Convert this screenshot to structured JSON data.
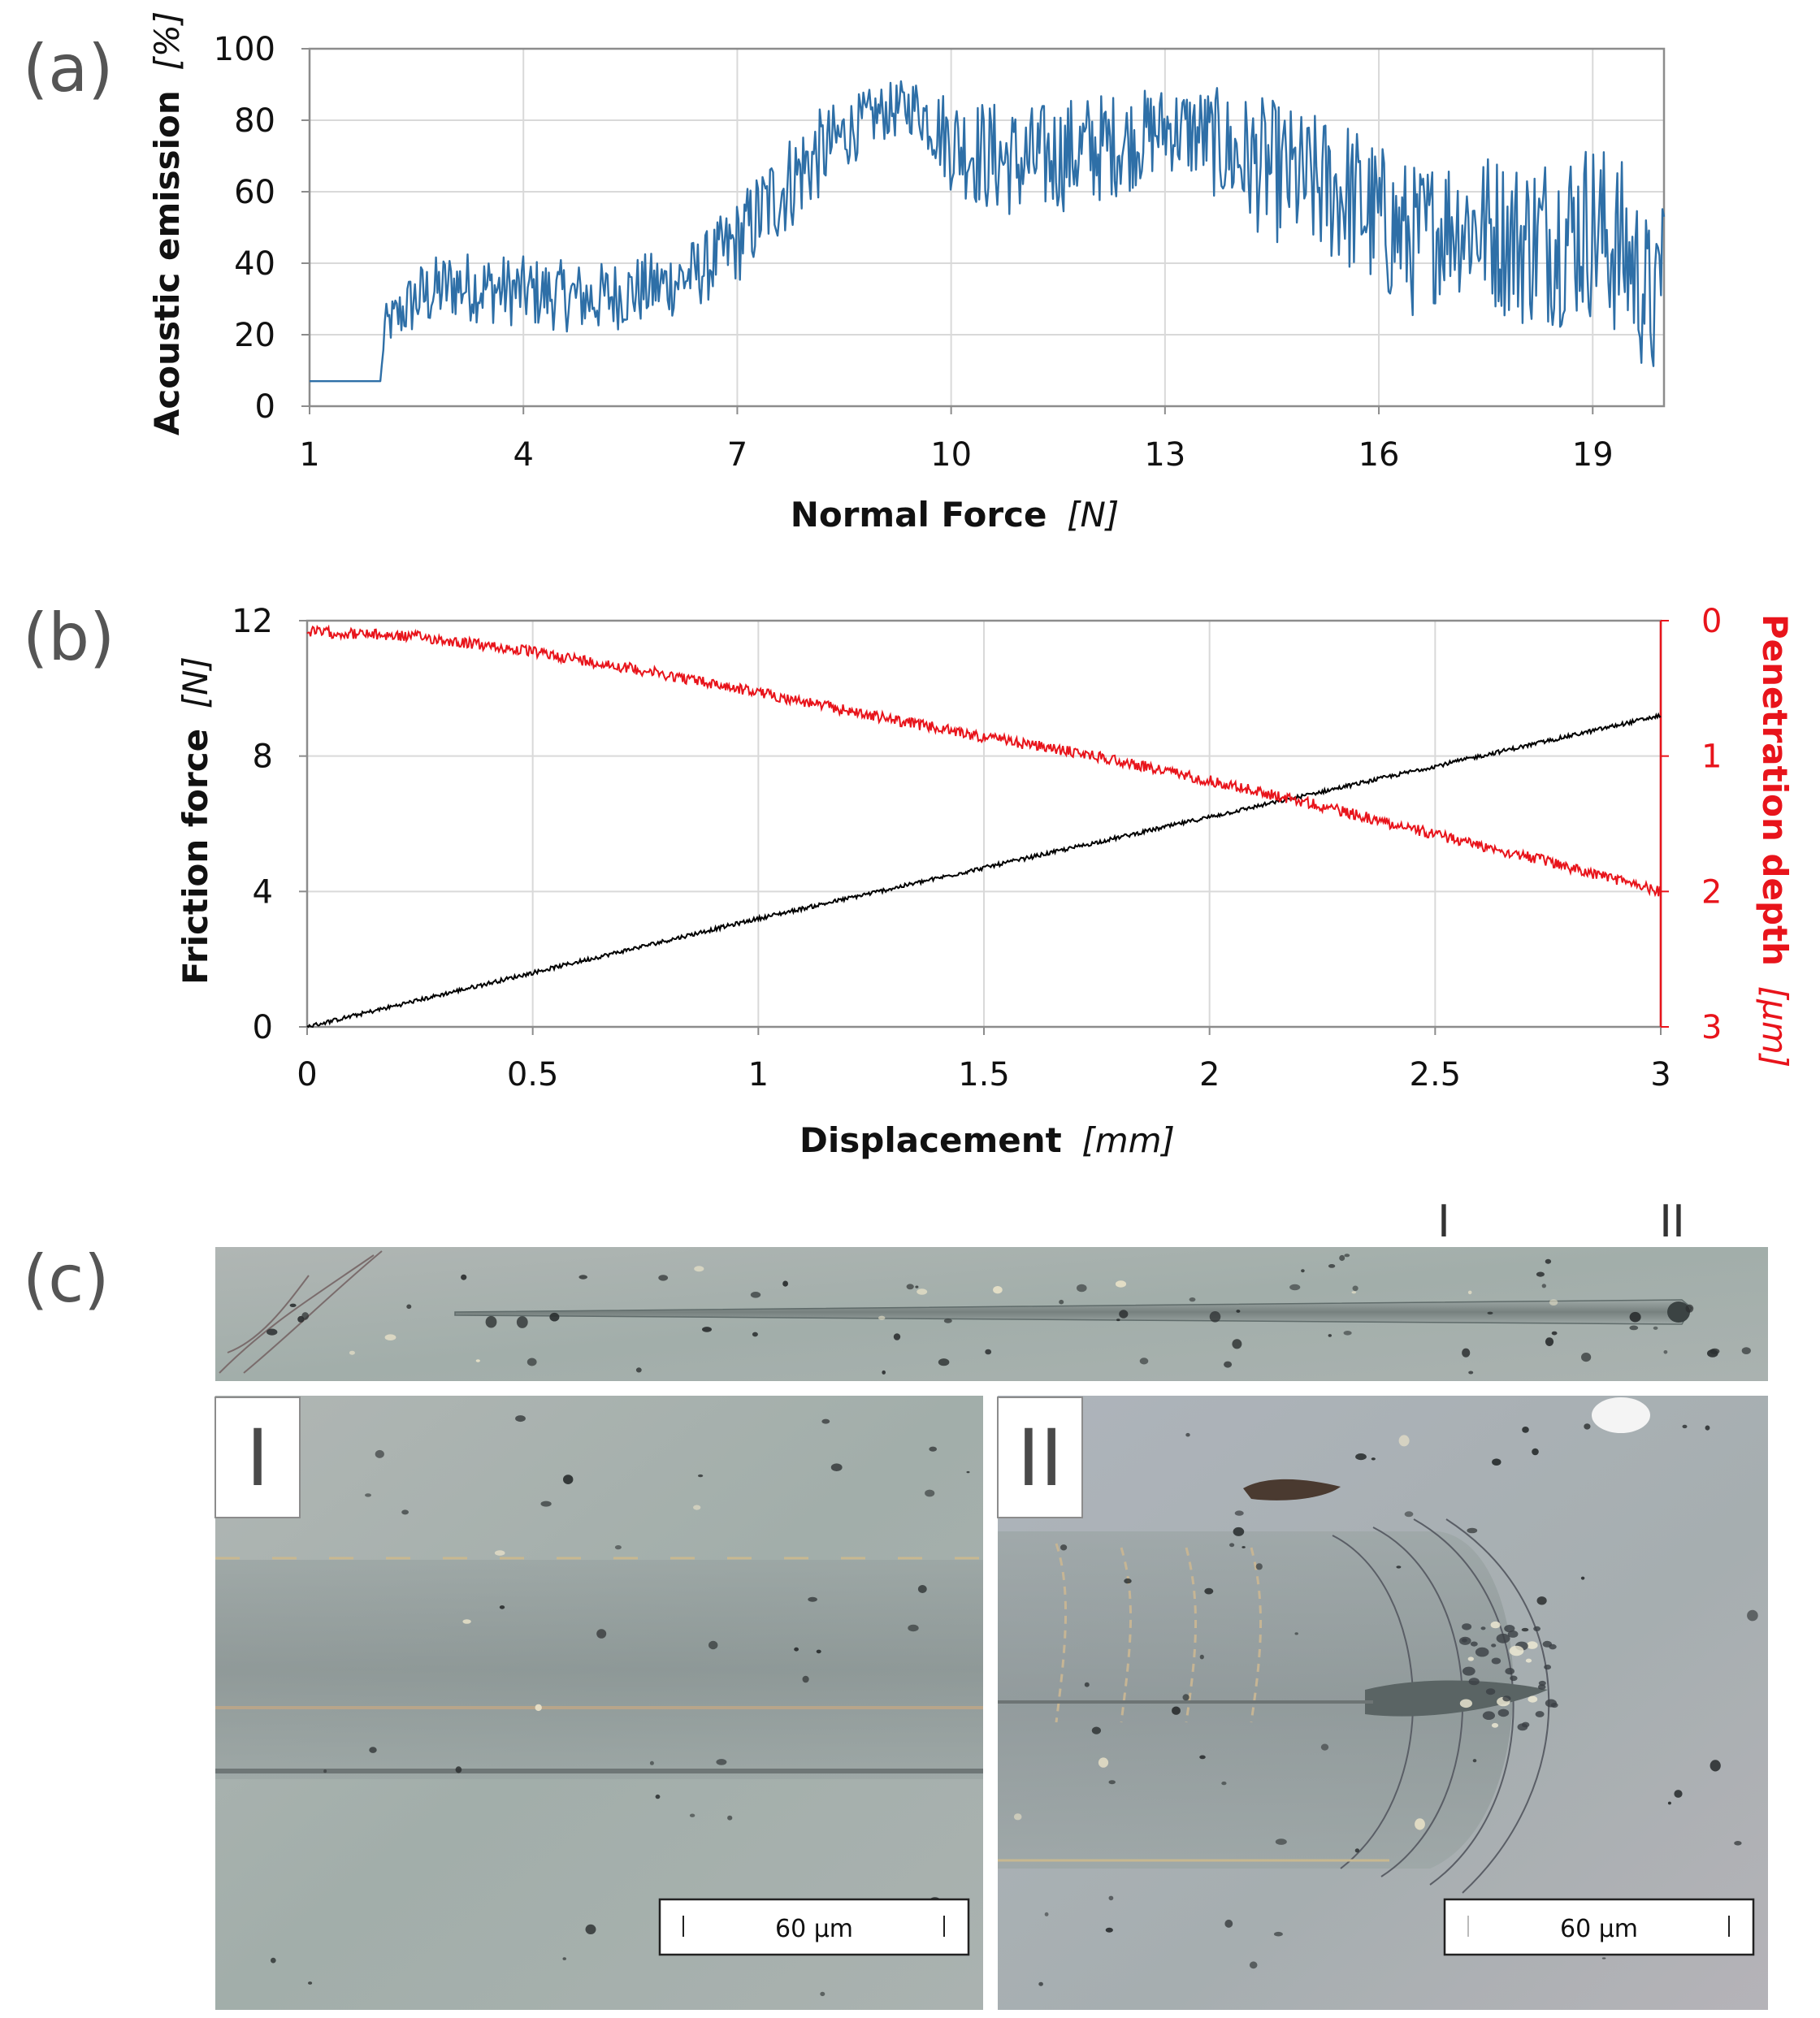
{
  "figure": {
    "label_a": "(a)",
    "label_b": "(b)",
    "label_c": "(c)"
  },
  "chart_data": [
    {
      "id": "a",
      "type": "line",
      "title": "",
      "xlabel": "Normal Force",
      "xlabel_unit": "[N]",
      "ylabel": "Acoustic emission",
      "ylabel_unit": "[%]",
      "xlim": [
        1,
        20
      ],
      "ylim": [
        0,
        100
      ],
      "x_ticks": [
        "1",
        "4",
        "7",
        "10",
        "13",
        "16",
        "19"
      ],
      "y_ticks": [
        "0",
        "20",
        "40",
        "60",
        "80",
        "100"
      ],
      "grid": true,
      "series": [
        {
          "name": "Acoustic emission",
          "color": "#2e6fa7",
          "x": [
            1,
            2,
            2.05,
            2.5,
            3,
            3.5,
            4,
            4.5,
            5,
            5.5,
            6,
            6.5,
            7,
            7.5,
            8,
            8.5,
            9,
            9.5,
            10,
            10.5,
            11,
            11.5,
            12,
            12.5,
            13,
            13.5,
            14,
            14.5,
            15,
            15.5,
            16,
            16.5,
            17,
            17.5,
            18,
            18.5,
            19,
            19.5,
            19.9,
            20
          ],
          "values": [
            7,
            7,
            22,
            30,
            34,
            33,
            32,
            31,
            30,
            32,
            34,
            38,
            46,
            58,
            68,
            76,
            82,
            84,
            74,
            70,
            68,
            70,
            72,
            74,
            78,
            76,
            70,
            66,
            62,
            60,
            52,
            46,
            52,
            50,
            46,
            48,
            50,
            42,
            25,
            55
          ],
          "noise_amplitude": [
            0,
            0,
            6,
            10,
            10,
            10,
            10,
            10,
            10,
            10,
            10,
            10,
            12,
            14,
            14,
            10,
            8,
            8,
            14,
            16,
            16,
            16,
            16,
            14,
            12,
            14,
            18,
            20,
            20,
            22,
            22,
            22,
            20,
            22,
            24,
            26,
            26,
            26,
            22,
            20
          ]
        }
      ]
    },
    {
      "id": "b",
      "type": "line",
      "title": "",
      "xlabel": "Displacement",
      "xlabel_unit": "[mm]",
      "ylabel": "Friction force",
      "ylabel_unit": "[N]",
      "ylabel_right": "Penetration depth",
      "ylabel_right_unit": "[µm]",
      "xlim": [
        0,
        3
      ],
      "ylim": [
        0,
        12
      ],
      "ylim_right": [
        3,
        0
      ],
      "x_ticks": [
        "0",
        "0.5",
        "1",
        "1.5",
        "2",
        "2.5",
        "3"
      ],
      "y_ticks": [
        "0",
        "4",
        "8",
        "12"
      ],
      "y_ticks_right": [
        "0",
        "1",
        "2",
        "3"
      ],
      "grid": true,
      "series": [
        {
          "name": "Friction force",
          "axis": "left",
          "color": "#000000",
          "x": [
            0,
            0.5,
            1,
            1.5,
            2,
            2.5,
            3
          ],
          "values": [
            0,
            1.6,
            3.2,
            4.7,
            6.2,
            7.7,
            9.2
          ],
          "noise_amplitude": 0.06
        },
        {
          "name": "Penetration depth",
          "axis": "right",
          "color": "#e8141b",
          "x": [
            0,
            0.25,
            0.5,
            0.75,
            1,
            1.25,
            1.5,
            1.75,
            2,
            2.25,
            2.5,
            2.75,
            3
          ],
          "values": [
            0.08,
            0.12,
            0.23,
            0.37,
            0.53,
            0.7,
            0.86,
            1.0,
            1.18,
            1.37,
            1.58,
            1.78,
            2.0
          ],
          "noise_amplitude": 0.04
        }
      ]
    }
  ],
  "micrographs": {
    "overview_marker_1": "I",
    "overview_marker_2": "II",
    "panel_1_label": "I",
    "panel_2_label": "II",
    "scale_bar_1": "60 µm",
    "scale_bar_2": "60 µm",
    "colors": {
      "background": "#a4b0ab",
      "track": "#8e9a97",
      "track_edge": "#c9b896",
      "debris": "#2b2f30"
    }
  }
}
